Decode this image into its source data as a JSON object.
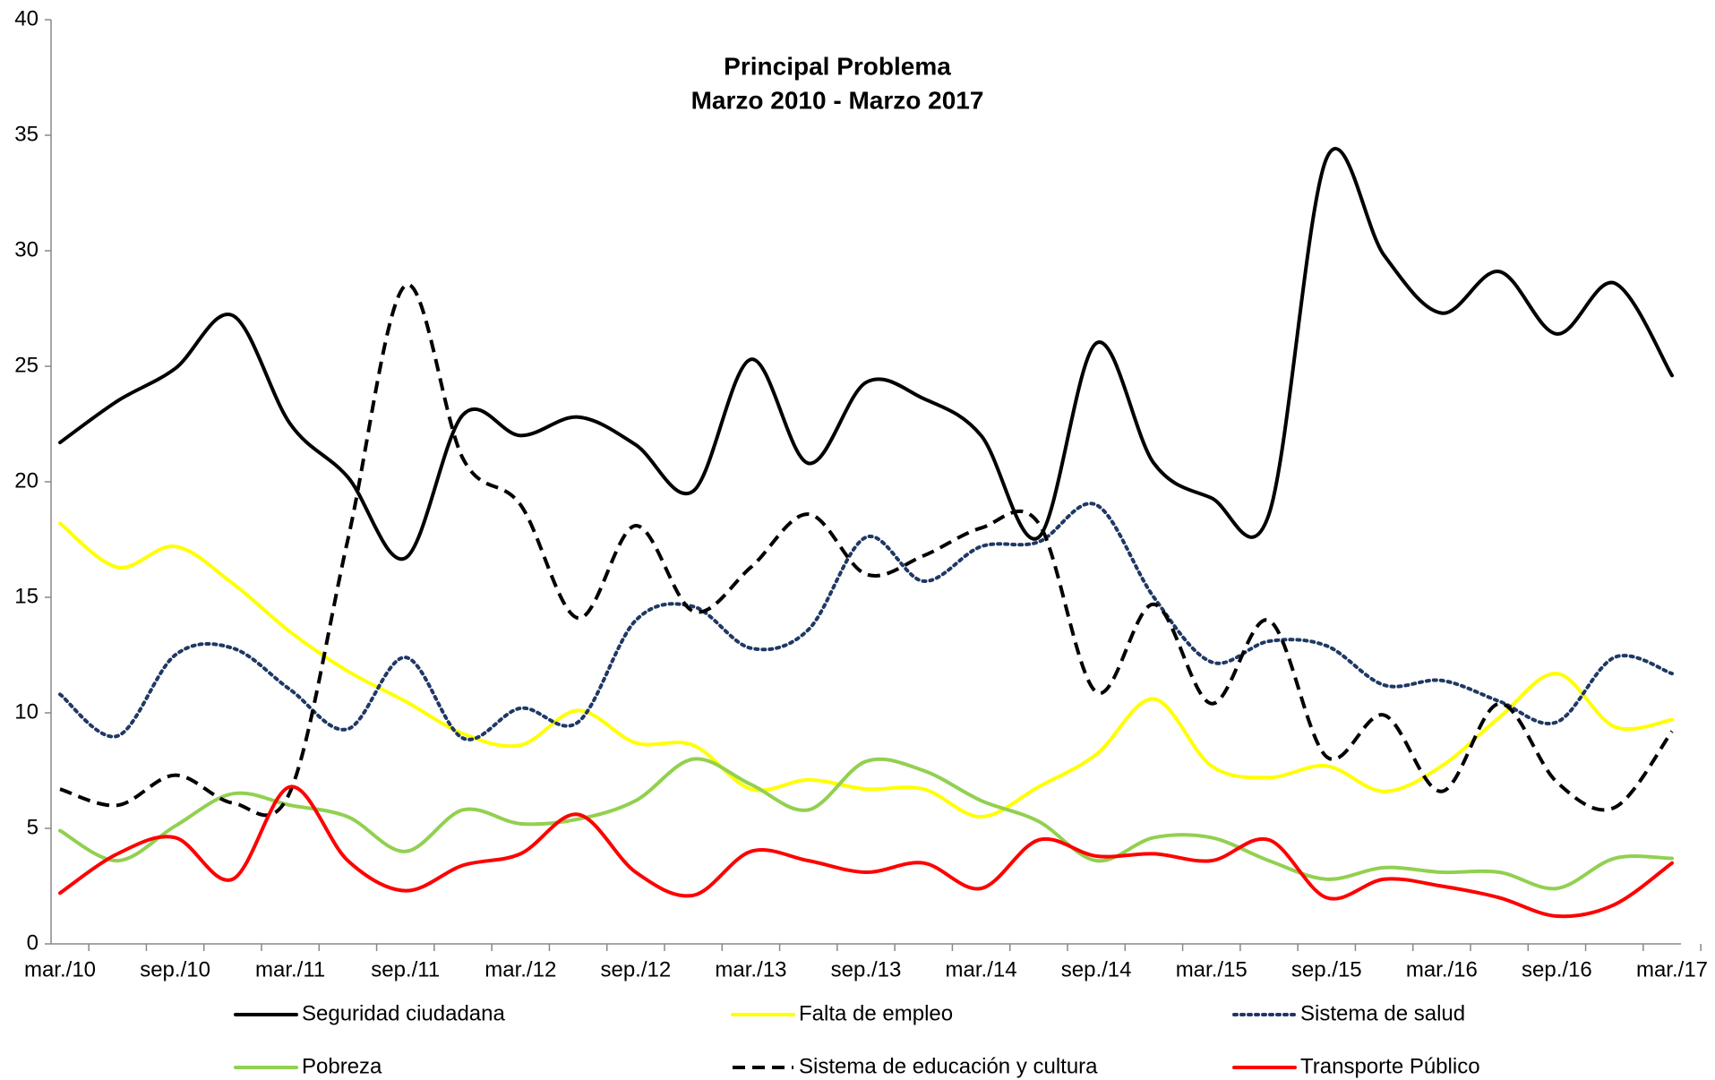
{
  "chart_data": {
    "type": "line",
    "title": "Principal Problema",
    "subtitle": "Marzo 2010 - Marzo 2017",
    "categories": [
      "mar./10",
      null,
      "sep./10",
      null,
      "mar./11",
      null,
      "sep./11",
      null,
      "mar./12",
      null,
      "sep./12",
      null,
      "mar./13",
      null,
      "sep./13",
      null,
      "mar./14",
      null,
      "sep./14",
      null,
      "mar./15",
      null,
      "sep./15",
      null,
      "mar./16",
      null,
      "sep./16",
      null,
      "mar./17"
    ],
    "series": [
      {
        "name": "Seguridad ciudadana",
        "color": "#000000",
        "dash": "solid",
        "values": [
          21.7,
          23.5,
          24.9,
          27.2,
          22.5,
          20.2,
          16.7,
          22.9,
          22.0,
          22.8,
          21.6,
          19.6,
          25.3,
          20.8,
          24.3,
          23.6,
          22.0,
          17.6,
          26.0,
          20.8,
          19.3,
          18.6,
          34.0,
          29.8,
          27.3,
          29.1,
          26.4,
          28.6,
          24.6
        ]
      },
      {
        "name": "Falta de empleo",
        "color": "#ffff00",
        "dash": "solid",
        "values": [
          18.2,
          16.3,
          17.2,
          15.6,
          13.5,
          11.8,
          10.5,
          9.1,
          8.6,
          10.1,
          8.7,
          8.6,
          6.7,
          7.1,
          6.7,
          6.7,
          5.5,
          6.8,
          8.2,
          10.6,
          7.7,
          7.2,
          7.7,
          6.6,
          7.7,
          9.8,
          11.7,
          9.4,
          9.7
        ]
      },
      {
        "name": "Sistema de salud",
        "color": "#1f3864",
        "dash": "dotted",
        "values": [
          10.8,
          9.0,
          12.5,
          12.8,
          11.0,
          9.3,
          12.4,
          8.9,
          10.2,
          9.6,
          14.0,
          14.6,
          12.8,
          13.6,
          17.6,
          15.7,
          17.2,
          17.4,
          19.0,
          15.0,
          12.2,
          13.1,
          12.9,
          11.2,
          11.4,
          10.5,
          9.6,
          12.4,
          11.7
        ]
      },
      {
        "name": "Pobreza",
        "color": "#92d050",
        "dash": "solid",
        "values": [
          4.9,
          3.6,
          5.1,
          6.5,
          6.0,
          5.5,
          4.0,
          5.8,
          5.2,
          5.4,
          6.2,
          8.0,
          6.9,
          5.8,
          7.9,
          7.5,
          6.2,
          5.3,
          3.6,
          4.6,
          4.6,
          3.6,
          2.8,
          3.3,
          3.1,
          3.1,
          2.4,
          3.7,
          3.7
        ]
      },
      {
        "name": "Sistema de educación y cultura",
        "color": "#000000",
        "dash": "dashed",
        "values": [
          6.7,
          6.0,
          7.3,
          6.1,
          6.6,
          17.5,
          28.5,
          21.0,
          19.0,
          14.1,
          18.1,
          14.4,
          16.3,
          18.6,
          16.0,
          16.8,
          18.0,
          18.2,
          10.9,
          14.7,
          10.4,
          14.0,
          8.1,
          9.9,
          6.6,
          10.4,
          7.0,
          5.9,
          9.2
        ]
      },
      {
        "name": "Transporte Público",
        "color": "#ff0000",
        "dash": "solid",
        "values": [
          2.2,
          3.9,
          4.6,
          2.8,
          6.8,
          3.6,
          2.3,
          3.4,
          3.9,
          5.6,
          3.1,
          2.1,
          4.0,
          3.6,
          3.1,
          3.5,
          2.4,
          4.5,
          3.8,
          3.9,
          3.6,
          4.5,
          2.0,
          2.8,
          2.5,
          2.0,
          1.2,
          1.7,
          3.5
        ]
      }
    ],
    "ylim": [
      0,
      40
    ],
    "yticks": [
      0,
      5,
      10,
      15,
      20,
      25,
      30,
      35,
      40
    ],
    "grid": false,
    "legend": "bottom"
  }
}
